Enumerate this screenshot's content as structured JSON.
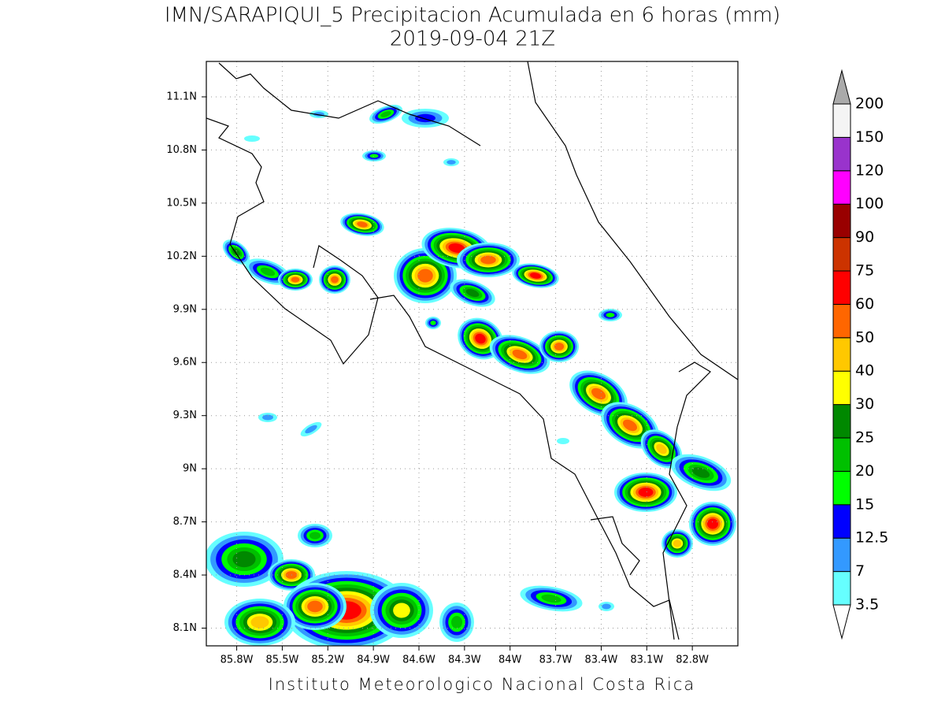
{
  "title": "IMN/SARAPIQUI_5 Precipitacion Acumulada en 6 horas (mm)",
  "subtitle": "2019-09-04 21Z",
  "footer": "Instituto Meteorologico Nacional Costa Rica",
  "map": {
    "xlim": [
      -86.0,
      -82.5
    ],
    "ylim": [
      8.0,
      11.3
    ],
    "xticks": [
      {
        "value": -85.8,
        "label": "85.8W"
      },
      {
        "value": -85.5,
        "label": "85.5W"
      },
      {
        "value": -85.2,
        "label": "85.2W"
      },
      {
        "value": -84.9,
        "label": "84.9W"
      },
      {
        "value": -84.6,
        "label": "84.6W"
      },
      {
        "value": -84.3,
        "label": "84.3W"
      },
      {
        "value": -84.0,
        "label": "84W"
      },
      {
        "value": -83.7,
        "label": "83.7W"
      },
      {
        "value": -83.4,
        "label": "83.4W"
      },
      {
        "value": -83.1,
        "label": "83.1W"
      },
      {
        "value": -82.8,
        "label": "82.8W"
      }
    ],
    "yticks": [
      {
        "value": 8.1,
        "label": "8.1N"
      },
      {
        "value": 8.4,
        "label": "8.4N"
      },
      {
        "value": 8.7,
        "label": "8.7N"
      },
      {
        "value": 9.0,
        "label": "9N"
      },
      {
        "value": 9.3,
        "label": "9.3N"
      },
      {
        "value": 9.6,
        "label": "9.6N"
      },
      {
        "value": 9.9,
        "label": "9.9N"
      },
      {
        "value": 10.2,
        "label": "10.2N"
      },
      {
        "value": 10.5,
        "label": "10.5N"
      },
      {
        "value": 10.8,
        "label": "10.8N"
      },
      {
        "value": 11.1,
        "label": "11.1N"
      }
    ],
    "grid": true
  },
  "colorbar": {
    "levels": [
      3.5,
      7,
      12.5,
      15,
      20,
      25,
      30,
      40,
      50,
      60,
      75,
      90,
      100,
      120,
      150,
      200
    ],
    "colors": [
      "#66ffff",
      "#3399ff",
      "#0000ff",
      "#00ff00",
      "#00c000",
      "#008800",
      "#ffff00",
      "#ffc800",
      "#ff6600",
      "#ff0000",
      "#cc3300",
      "#990000",
      "#ff00ff",
      "#9933cc",
      "#f4f4f4"
    ],
    "over_color": "#aaaaaa",
    "under_color": "#ffffff"
  }
}
